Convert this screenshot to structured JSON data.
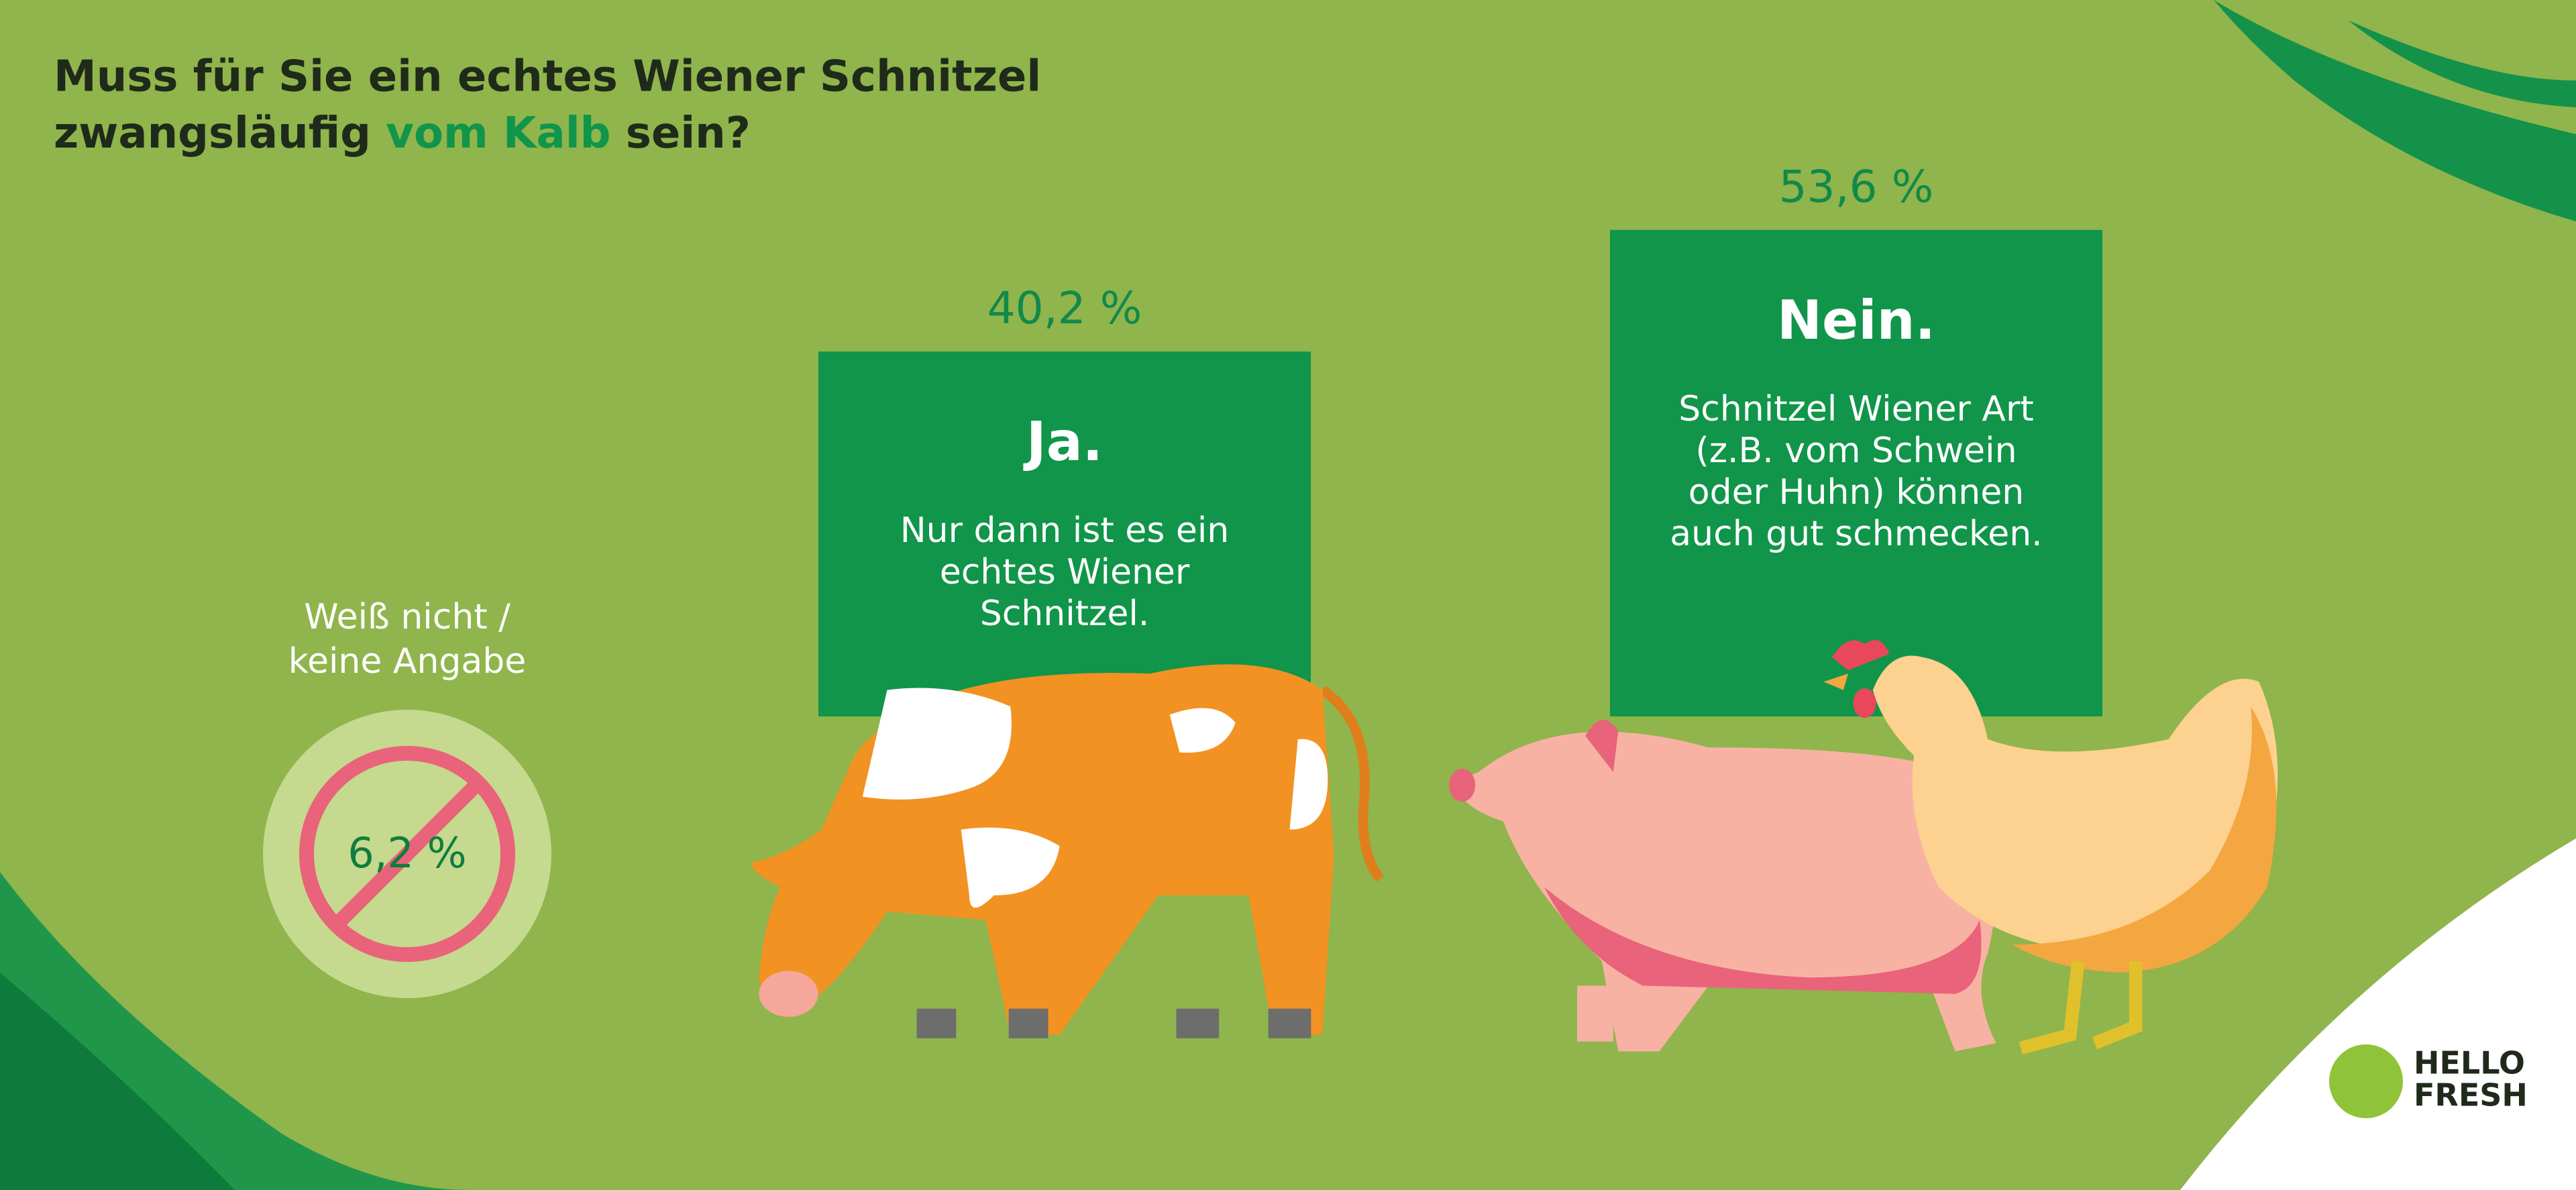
{
  "chart_data": {
    "type": "bar",
    "title_parts": [
      "Muss für Sie ein echtes Wiener Schnitzel",
      "zwangsläufig ",
      "vom Kalb",
      " sein?"
    ],
    "categories": [
      "Ja.",
      "Nein."
    ],
    "descriptions": [
      [
        "Nur dann ist es ein",
        "echtes Wiener",
        "Schnitzel."
      ],
      [
        "Schnitzel Wiener Art",
        "(z.B. vom Schwein",
        "oder Huhn) können",
        "auch gut schmecken."
      ]
    ],
    "values": [
      40.2,
      53.6
    ],
    "value_labels": [
      "40,2 %",
      "53,6 %"
    ],
    "color": "#10954a",
    "other": {
      "label_lines": [
        "Weiß nicht /",
        "keine Angabe"
      ],
      "value": 6.2,
      "value_label": "6,2 %"
    },
    "logo": [
      "HELLO",
      "FRESH"
    ]
  }
}
